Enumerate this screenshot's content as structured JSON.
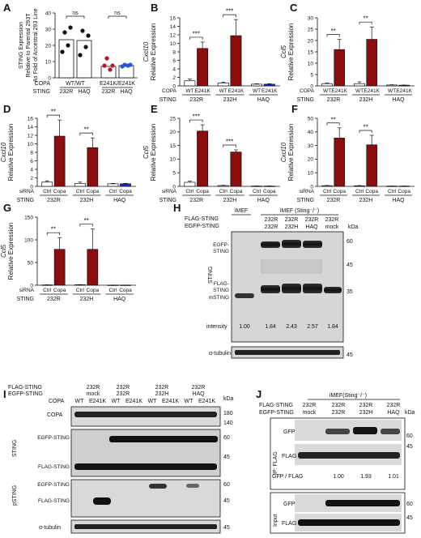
{
  "panels": {
    "A": {
      "letter": "A"
    },
    "B": {
      "letter": "B"
    },
    "C": {
      "letter": "C"
    },
    "D": {
      "letter": "D"
    },
    "E": {
      "letter": "E"
    },
    "F": {
      "letter": "F"
    },
    "G": {
      "letter": "G"
    },
    "H": {
      "letter": "H"
    },
    "I": {
      "letter": "I"
    },
    "J": {
      "letter": "J"
    }
  },
  "colors": {
    "white_bar": "#ffffff",
    "dark_red": "#8b0d0d",
    "blue": "#1a2bd6",
    "black": "#111111",
    "red_dot": "#b2182b",
    "blue_dot": "#2456d6"
  },
  "chart_data": [
    {
      "id": "A",
      "type": "scatter",
      "ylabel_lines": [
        "STING Expression",
        "Relative to Parental 293T",
        "As Fold of Ancestral 293 Line"
      ],
      "ylim": [
        0,
        40
      ],
      "yticks": [
        0,
        10,
        20,
        30,
        40
      ],
      "row_labels": [
        "COPA",
        "STING"
      ],
      "groups": [
        {
          "sting": "232R",
          "copa_group": "WT/WT",
          "mean": 23.5,
          "points": [
            16,
            28,
            20,
            31
          ],
          "color": "#111111"
        },
        {
          "sting": "HAQ",
          "copa_group": "WT/WT",
          "mean": 23,
          "points": [
            14,
            29,
            19,
            26
          ],
          "color": "#111111"
        },
        {
          "sting": "232R",
          "copa_group": "E241K/E241K",
          "mean": 7,
          "points": [
            7.5,
            12,
            5,
            7.5
          ],
          "color": "#b2182b"
        },
        {
          "sting": "HAQ",
          "copa_group": "E241K/E241K",
          "mean": 7.5,
          "points": [
            7,
            8,
            7.5,
            8
          ],
          "color": "#2456d6"
        }
      ],
      "sting_labels": [
        "232R",
        "HAQ",
        "232R",
        "HAQ"
      ],
      "copa_labels": [
        "WT/WT",
        "E241K/E241K"
      ],
      "sig": [
        {
          "text": "ns"
        },
        {
          "text": "ns"
        }
      ]
    },
    {
      "id": "B",
      "type": "bar",
      "ylabel_gene": "Cxcl10",
      "ylabel": "Relative Expression",
      "ylim": [
        0,
        16
      ],
      "yticks": [
        0,
        2,
        4,
        6,
        8,
        10,
        12,
        14,
        16
      ],
      "row_labels": [
        "COPA",
        "STING"
      ],
      "cat_labels": [
        "WT",
        "E241K",
        "WT",
        "E241K",
        "WT",
        "E241K"
      ],
      "group_labels": [
        "232R",
        "232H",
        "HAQ"
      ],
      "values": [
        1.2,
        8.8,
        0.7,
        11.8,
        0.4,
        0.4
      ],
      "errors": [
        0.4,
        1.5,
        0.2,
        3.8,
        0.1,
        0.1
      ],
      "colors": [
        "white",
        "red",
        "white",
        "red",
        "white",
        "blue"
      ],
      "sig": [
        {
          "text": "***"
        },
        {
          "text": "***"
        }
      ]
    },
    {
      "id": "C",
      "type": "bar",
      "ylabel_gene": "Ccl5",
      "ylabel": "Relative Expression",
      "ylim": [
        0,
        30
      ],
      "yticks": [
        0,
        5,
        10,
        15,
        20,
        25,
        30
      ],
      "row_labels": [
        "COPA",
        "STING"
      ],
      "cat_labels": [
        "WT",
        "E241K",
        "WT",
        "E241K",
        "WT",
        "E241K"
      ],
      "group_labels": [
        "232R",
        "232H",
        "HAQ"
      ],
      "values": [
        1.0,
        16.0,
        1.0,
        20.5,
        0.4,
        0.3
      ],
      "errors": [
        0.3,
        4.5,
        0.8,
        5.5,
        0.1,
        0.1
      ],
      "colors": [
        "white",
        "red",
        "white",
        "red",
        "white",
        "blue"
      ],
      "sig": [
        {
          "text": "**"
        },
        {
          "text": "**"
        }
      ]
    },
    {
      "id": "D",
      "type": "bar",
      "ylabel_gene": "Cxcl10",
      "ylabel": "Relative Expression",
      "ylim": [
        0,
        16
      ],
      "yticks": [
        0,
        2,
        4,
        6,
        8,
        10,
        12,
        14,
        16
      ],
      "row_labels": [
        "siRNA",
        "STING"
      ],
      "cat_labels": [
        "Ctrl",
        "Copa",
        "Ctrl",
        "Copa",
        "Ctrl",
        "Copa"
      ],
      "group_labels": [
        "232R",
        "232H",
        "HAQ"
      ],
      "values": [
        1.0,
        11.8,
        0.7,
        9.1,
        0.6,
        0.6
      ],
      "errors": [
        0.3,
        3.8,
        0.3,
        2.3,
        0.1,
        0.1
      ],
      "colors": [
        "white",
        "red",
        "white",
        "red",
        "white",
        "blue"
      ],
      "sig": [
        {
          "text": "**"
        },
        {
          "text": "**"
        }
      ]
    },
    {
      "id": "E",
      "type": "bar",
      "ylabel_gene": "Ccl5",
      "ylabel": "Relative Expression",
      "ylim": [
        0,
        25
      ],
      "yticks": [
        0,
        5,
        10,
        15,
        20,
        25
      ],
      "row_labels": [
        "siRNA",
        "STING"
      ],
      "cat_labels": [
        "Ctrl",
        "Copa",
        "Ctrl",
        "Copa",
        "Ctrl",
        "Copa"
      ],
      "group_labels": [
        "232R",
        "232H",
        "HAQ"
      ],
      "values": [
        1.5,
        20.3,
        0.3,
        12.6,
        0.1,
        0.1
      ],
      "errors": [
        0.4,
        2.3,
        0.1,
        0.8,
        0.05,
        0.05
      ],
      "colors": [
        "white",
        "red",
        "white",
        "red",
        "white",
        "blue"
      ],
      "sig": [
        {
          "text": "***"
        },
        {
          "text": "***"
        }
      ]
    },
    {
      "id": "F",
      "type": "bar",
      "ylabel_gene": "Cxcl10",
      "ylabel": "Relative Expression",
      "ylim": [
        0,
        50
      ],
      "yticks": [
        0,
        10,
        20,
        30,
        40,
        50
      ],
      "row_labels": [
        "siRNA",
        "STING"
      ],
      "cat_labels": [
        "Ctrl",
        "Copa",
        "Ctrl",
        "Copa",
        "Ctrl",
        "Copa"
      ],
      "group_labels": [
        "232R",
        "232H",
        "HAQ"
      ],
      "values": [
        0.5,
        35.5,
        0.4,
        30.5,
        0.2,
        0.2
      ],
      "errors": [
        0.2,
        7.5,
        0.2,
        7.0,
        0.05,
        0.05
      ],
      "colors": [
        "white",
        "red",
        "white",
        "red",
        "white",
        "blue"
      ],
      "sig": [
        {
          "text": "**"
        },
        {
          "text": "**"
        }
      ]
    },
    {
      "id": "G",
      "type": "bar",
      "ylabel_gene": "Ccl5",
      "ylabel": "Relative Expression",
      "ylim": [
        0,
        150
      ],
      "yticks": [
        0,
        50,
        100,
        150
      ],
      "row_labels": [
        "siRNA",
        "STING"
      ],
      "cat_labels": [
        "Ctrl",
        "Copa",
        "Ctrl",
        "Copa",
        "Ctrl",
        "Copa"
      ],
      "group_labels": [
        "232R",
        "232H",
        "HAQ"
      ],
      "values": [
        0.6,
        79,
        1.0,
        79,
        0.3,
        0.3
      ],
      "errors": [
        0.2,
        26,
        0.4,
        45,
        0.1,
        0.1
      ],
      "colors": [
        "white",
        "red",
        "white",
        "red",
        "white",
        "blue"
      ],
      "sig": [
        {
          "text": "**"
        },
        {
          "text": "**"
        }
      ]
    }
  ],
  "blotH": {
    "letter": "H",
    "row_labels": [
      "FLAG-STING",
      "EGFP-STING"
    ],
    "header_left": "iMEF",
    "header_right": "iMEF (Sting⁻/⁻)",
    "flag_cols": [
      "232R",
      "232R",
      "232R",
      "232R"
    ],
    "egfp_cols": [
      "232R",
      "232H",
      "HAQ",
      "mock"
    ],
    "kda": "kDa",
    "sting_label": "STING",
    "band_labels": [
      "EGFP-",
      "STING",
      "FLAG-",
      "STING",
      "mSTING"
    ],
    "markers": [
      "60",
      "45",
      "35"
    ],
    "intensity_label": "intensity",
    "intensities": [
      "1.00",
      "1.84",
      "2.43",
      "2.57",
      "1.84"
    ],
    "tubulin": "α-tubulin",
    "tubulin_marker": "45"
  },
  "blotI": {
    "letter": "I",
    "row_labels": [
      "FLAG-STING",
      "EGFP-STING",
      "COPA"
    ],
    "flag_cols": [
      "232R",
      "232R",
      "232R",
      "232R"
    ],
    "egfp_cols": [
      "mock",
      "232R",
      "232H",
      "HAQ"
    ],
    "copa_cols": [
      "WT",
      "E241K",
      "WT",
      "E241K",
      "WT",
      "E241K",
      "WT",
      "E241K"
    ],
    "kda": "kDa",
    "copa_label": "COPA",
    "copa_markers": [
      "180",
      "140"
    ],
    "sting_label": "STING",
    "psting_label": "pSTING",
    "band_egfp": "EGFP-STING",
    "band_flag": "FLAG-STING",
    "markers": [
      "60",
      "45"
    ],
    "tubulin": "α-tubulin",
    "tubulin_marker": "45"
  },
  "blotJ": {
    "letter": "J",
    "header": "iMEF(Sting⁻/⁻)",
    "row_labels": [
      "FLAG-STING",
      "EGFP-STING"
    ],
    "flag_cols": [
      "232R",
      "232R",
      "232R",
      "232R"
    ],
    "egfp_cols": [
      "mock",
      "232R",
      "232H",
      "HAQ"
    ],
    "kda": "kDa",
    "ip_label": "IP: FLAG",
    "input_label": "Input",
    "gfp": "GFP",
    "flag": "FLAG",
    "ratio_label": "GFP / FLAG",
    "ratios": [
      "1.00",
      "1.93",
      "1.01"
    ],
    "markers": [
      "60",
      "45"
    ]
  }
}
